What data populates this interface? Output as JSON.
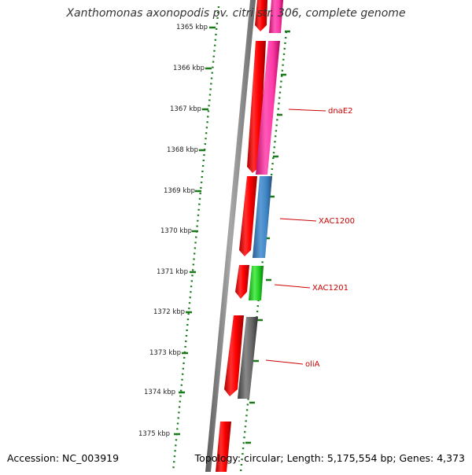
{
  "title": "Xanthomonas axonopodis pv. citri str. 306, complete genome",
  "accession": "Accession: NC_003919",
  "topology": "Topology: circular; Length: 5,175,554 bp; Genes: 4,373",
  "colors": {
    "ruler": "#1a7a1a",
    "backbone": "#888888",
    "label": "#cc0000",
    "forward_strand": "#ff0000",
    "dnaE2": "#ff3aa8",
    "XAC1200": "#3f86c6",
    "XAC1201": "#22cc22",
    "oliA": "#666666"
  },
  "ruler": {
    "unit": "kbp",
    "ticks": [
      "1365 kbp",
      "1366 kbp",
      "1367 kbp",
      "1368 kbp",
      "1369 kbp",
      "1370 kbp",
      "1371 kbp",
      "1372 kbp",
      "1373 kbp",
      "1374 kbp",
      "1375 kbp"
    ]
  },
  "genes": [
    {
      "name": "dnaE2",
      "label": "dnaE2"
    },
    {
      "name": "XAC1200",
      "label": "XAC1200"
    },
    {
      "name": "XAC1201",
      "label": "XAC1201"
    },
    {
      "name": "oliA",
      "label": "oliA"
    }
  ]
}
